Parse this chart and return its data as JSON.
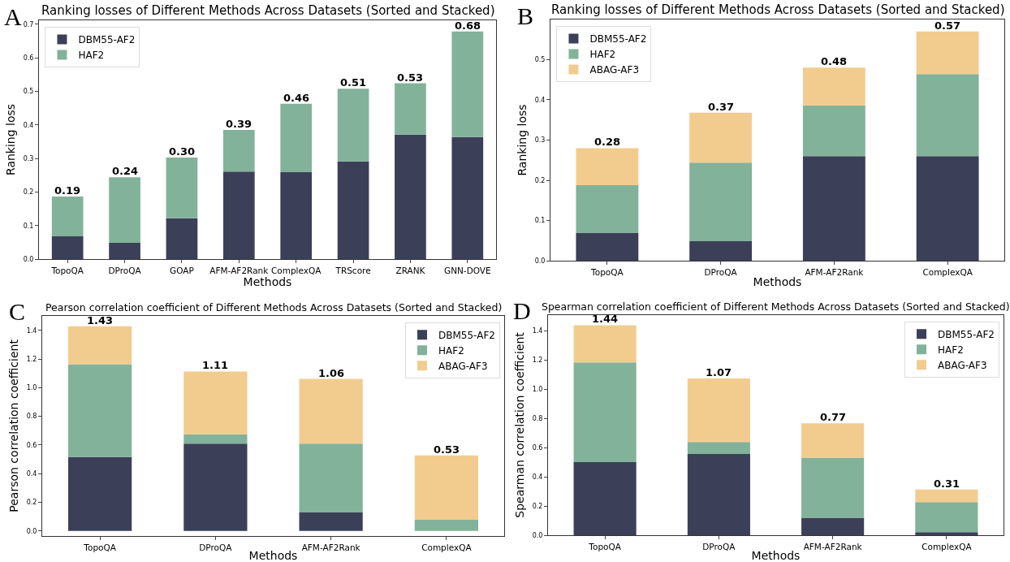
{
  "chart_data": [
    {
      "type": "bar",
      "title": "Ranking losses of Different Methods Across Datasets (Sorted and Stacked)",
      "xlabel": "Methods",
      "ylabel": "Ranking loss",
      "annotations": [
        "A"
      ],
      "stacked": true,
      "legend": "top left",
      "categories": [
        "TopoQA",
        "DProQA",
        "GOAP",
        "AFM-AF2Rank",
        "ComplexQA",
        "TRScore",
        "ZRANK",
        "GNN-DOVE"
      ],
      "series": [
        {
          "name": "DBM55-AF2",
          "color": "#3c3f58",
          "values": [
            0.068,
            0.049,
            0.122,
            0.261,
            0.259,
            0.291,
            0.371,
            0.364
          ]
        },
        {
          "name": "HAF2",
          "color": "#82b29a",
          "values": [
            0.119,
            0.195,
            0.181,
            0.124,
            0.204,
            0.217,
            0.153,
            0.314
          ]
        }
      ],
      "totals": [
        "0.19",
        "0.24",
        "0.30",
        "0.39",
        "0.46",
        "0.51",
        "0.53",
        "0.68"
      ],
      "ylim": [
        0,
        0.712
      ],
      "yticks": [
        {
          "value": 0,
          "label": "0.0"
        },
        {
          "value": 0.1,
          "label": "0.1"
        },
        {
          "value": 0.2,
          "label": "0.2"
        },
        {
          "value": 0.3,
          "label": "0.3"
        },
        {
          "value": 0.4,
          "label": "0.4"
        },
        {
          "value": 0.5,
          "label": "0.5"
        },
        {
          "value": 0.6,
          "label": "0.6"
        },
        {
          "value": 0.7,
          "label": "0.7"
        }
      ]
    },
    {
      "type": "bar",
      "title": "Ranking losses of Different Methods Across Datasets (Sorted and Stacked)",
      "xlabel": "Methods",
      "ylabel": "Ranking loss",
      "annotations": [
        "B"
      ],
      "stacked": true,
      "legend": "top left",
      "categories": [
        "TopoQA",
        "DProQA",
        "AFM-AF2Rank",
        "ComplexQA"
      ],
      "series": [
        {
          "name": "DBM55-AF2",
          "color": "#3c3f58",
          "values": [
            0.069,
            0.049,
            0.26,
            0.26
          ]
        },
        {
          "name": "HAF2",
          "color": "#82b29a",
          "values": [
            0.119,
            0.195,
            0.126,
            0.204
          ]
        },
        {
          "name": "ABAG-AF3",
          "color": "#f2cc8f",
          "values": [
            0.092,
            0.124,
            0.094,
            0.106
          ]
        }
      ],
      "totals": [
        "0.28",
        "0.37",
        "0.48",
        "0.57"
      ],
      "ylim": [
        0,
        0.6
      ],
      "yticks": [
        {
          "value": 0,
          "label": "0.0"
        },
        {
          "value": 0.1,
          "label": "0.1"
        },
        {
          "value": 0.2,
          "label": "0.2"
        },
        {
          "value": 0.3,
          "label": "0.3"
        },
        {
          "value": 0.4,
          "label": "0.4"
        },
        {
          "value": 0.5,
          "label": "0.5"
        }
      ]
    },
    {
      "type": "bar",
      "title": "Pearson correlation coefficient of Different Methods Across Datasets (Sorted and Stacked)",
      "xlabel": "Methods",
      "ylabel": "Pearson correlation coefficient",
      "annotations": [
        "C"
      ],
      "stacked": true,
      "legend": "top right",
      "categories": [
        "TopoQA",
        "DProQA",
        "AFM-AF2Rank",
        "ComplexQA"
      ],
      "series": [
        {
          "name": "DBM55-AF2",
          "color": "#3c3f58",
          "values": [
            0.516,
            0.61,
            0.13,
            null
          ]
        },
        {
          "name": "HAF2",
          "color": "#82b29a",
          "values": [
            0.648,
            0.065,
            0.48,
            0.079
          ]
        },
        {
          "name": "ABAG-AF3",
          "color": "#f2cc8f",
          "values": [
            0.265,
            0.438,
            0.451,
            0.448
          ]
        }
      ],
      "totals": [
        "1.43",
        "1.11",
        "1.06",
        "0.53"
      ],
      "ylim": [
        -0.036,
        1.503
      ],
      "yticks": [
        {
          "value": 0,
          "label": "0.0"
        },
        {
          "value": 0.2,
          "label": "0.2"
        },
        {
          "value": 0.4,
          "label": "0.4"
        },
        {
          "value": 0.6,
          "label": "0.6"
        },
        {
          "value": 0.8,
          "label": "0.8"
        },
        {
          "value": 1.0,
          "label": "1.0"
        },
        {
          "value": 1.2,
          "label": "1.2"
        },
        {
          "value": 1.4,
          "label": "1.4"
        }
      ]
    },
    {
      "type": "bar",
      "title": "Spearman correlation coefficient of Different Methods Across Datasets (Sorted and Stacked)",
      "xlabel": "Methods",
      "ylabel": "Spearman correlation coefficient",
      "annotations": [
        "D"
      ],
      "stacked": true,
      "legend": "top right",
      "categories": [
        "TopoQA",
        "DProQA",
        "AFM-AF2Rank",
        "ComplexQA"
      ],
      "series": [
        {
          "name": "DBM55-AF2",
          "color": "#3c3f58",
          "values": [
            0.501,
            0.556,
            0.121,
            0.022
          ]
        },
        {
          "name": "HAF2",
          "color": "#82b29a",
          "values": [
            0.682,
            0.082,
            0.411,
            0.205
          ]
        },
        {
          "name": "ABAG-AF3",
          "color": "#f2cc8f",
          "values": [
            0.254,
            0.435,
            0.234,
            0.087
          ]
        }
      ],
      "totals": [
        "1.44",
        "1.07",
        "0.77",
        "0.31"
      ],
      "ylim": [
        0,
        1.508
      ],
      "yticks": [
        {
          "value": 0,
          "label": "0.0"
        },
        {
          "value": 0.2,
          "label": "0.2"
        },
        {
          "value": 0.4,
          "label": "0.4"
        },
        {
          "value": 0.6,
          "label": "0.6"
        },
        {
          "value": 0.8,
          "label": "0.8"
        },
        {
          "value": 1.0,
          "label": "1.0"
        },
        {
          "value": 1.2,
          "label": "1.2"
        },
        {
          "value": 1.4,
          "label": "1.4"
        }
      ]
    }
  ]
}
